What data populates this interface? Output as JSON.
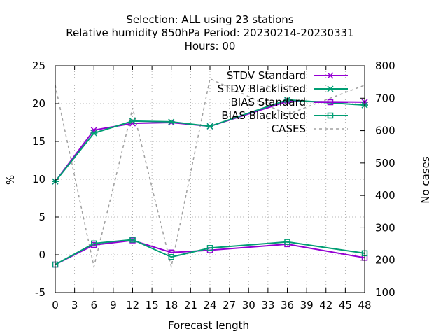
{
  "chart_data": {
    "type": "line",
    "title_lines": [
      "Selection: ALL using    23 stations",
      "Relative humidity 850hPa   Period: 20230214-20230331",
      "Hours:  00"
    ],
    "xlabel": "Forecast length",
    "ylabel": "%",
    "y2label": "No cases",
    "xlim": [
      0,
      48
    ],
    "ylim": [
      -5,
      25
    ],
    "y2lim": [
      100,
      800
    ],
    "xticks": [
      0,
      3,
      6,
      9,
      12,
      15,
      18,
      21,
      24,
      27,
      30,
      33,
      36,
      39,
      42,
      45,
      48
    ],
    "yticks": [
      -5,
      0,
      5,
      10,
      15,
      20,
      25
    ],
    "y2ticks": [
      100,
      200,
      300,
      400,
      500,
      600,
      700,
      800
    ],
    "grid": true,
    "legend_position": "top-right",
    "series": [
      {
        "name": "STDV Standard",
        "axis": "y",
        "color": "#9400d3",
        "marker": "x",
        "dash": false,
        "x": [
          0,
          6,
          12,
          18,
          24,
          36,
          48
        ],
        "values": [
          9.7,
          16.5,
          17.4,
          17.5,
          17.0,
          20.3,
          20.2
        ]
      },
      {
        "name": "STDV Blacklisted",
        "axis": "y",
        "color": "#009e73",
        "marker": "x",
        "dash": false,
        "x": [
          0,
          6,
          12,
          18,
          24,
          36,
          48
        ],
        "values": [
          9.7,
          16.1,
          17.7,
          17.6,
          17.0,
          20.5,
          19.8
        ]
      },
      {
        "name": "BIAS Standard",
        "axis": "y",
        "color": "#9400d3",
        "marker": "square",
        "dash": false,
        "x": [
          0,
          6,
          12,
          18,
          24,
          36,
          48
        ],
        "values": [
          -1.3,
          1.3,
          1.9,
          0.3,
          0.6,
          1.4,
          -0.4
        ]
      },
      {
        "name": "BIAS Blacklisted",
        "axis": "y",
        "color": "#009e73",
        "marker": "square",
        "dash": false,
        "x": [
          0,
          6,
          12,
          18,
          24,
          36,
          48
        ],
        "values": [
          -1.3,
          1.5,
          2.0,
          -0.3,
          0.9,
          1.7,
          0.2
        ]
      },
      {
        "name": "CASES",
        "axis": "y2",
        "color": "#a0a0a0",
        "marker": "none",
        "dash": true,
        "x": [
          0,
          6,
          12,
          18,
          24,
          36,
          48
        ],
        "values": [
          740,
          180,
          670,
          180,
          760,
          650,
          740
        ]
      }
    ]
  }
}
